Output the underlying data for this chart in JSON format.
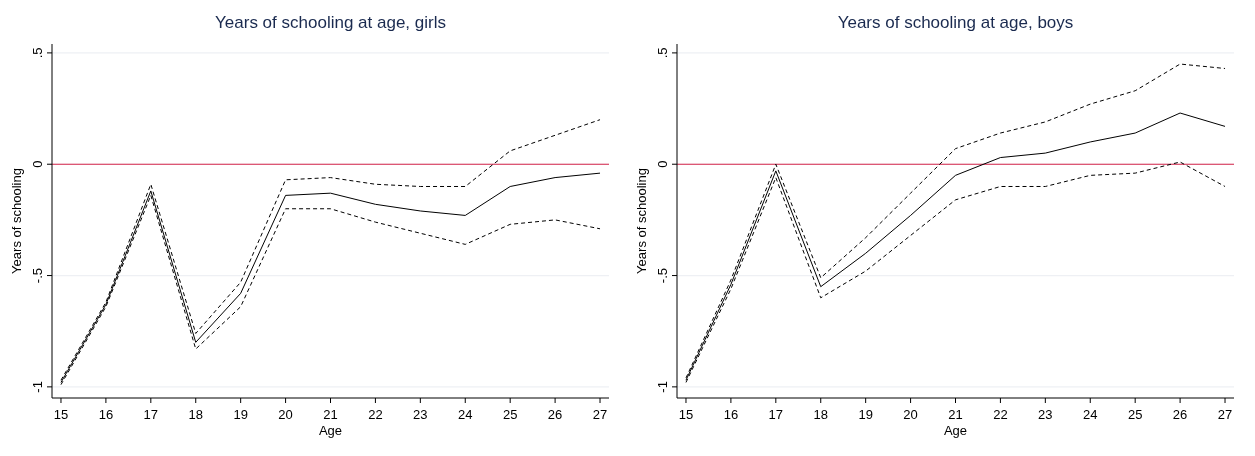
{
  "chart_data": [
    {
      "type": "line",
      "title": "Years of schooling at age, girls",
      "xlabel": "Age",
      "ylabel": "Years of schooling",
      "x": [
        15,
        16,
        17,
        18,
        19,
        20,
        21,
        22,
        23,
        24,
        25,
        26,
        27
      ],
      "xlim": [
        14.8,
        27.2
      ],
      "xticks": [
        15,
        16,
        17,
        18,
        19,
        20,
        21,
        22,
        23,
        24,
        25,
        26,
        27
      ],
      "ylim": [
        -1.05,
        0.54
      ],
      "yticks": [
        {
          "value": -1,
          "label": "-1"
        },
        {
          "value": -0.5,
          "label": "-.5"
        },
        {
          "value": 0,
          "label": "0"
        },
        {
          "value": 0.5,
          "label": ".5"
        }
      ],
      "grid": "y",
      "marker": "none",
      "ref_lines": [
        {
          "axis": "y",
          "value": 0,
          "color": "#d4244a"
        }
      ],
      "series": [
        {
          "color": "#000000",
          "line_style": "dashed",
          "values": [
            -0.97,
            -0.62,
            -0.09,
            -0.76,
            -0.53,
            -0.07,
            -0.06,
            -0.09,
            -0.1,
            -0.1,
            0.06,
            0.13,
            0.2
          ]
        },
        {
          "color": "#000000",
          "line_style": "solid",
          "values": [
            -0.98,
            -0.63,
            -0.12,
            -0.8,
            -0.58,
            -0.14,
            -0.13,
            -0.18,
            -0.21,
            -0.23,
            -0.1,
            -0.06,
            -0.04
          ]
        },
        {
          "color": "#000000",
          "line_style": "dashed",
          "values": [
            -0.99,
            -0.64,
            -0.14,
            -0.83,
            -0.64,
            -0.2,
            -0.2,
            -0.26,
            -0.31,
            -0.36,
            -0.27,
            -0.25,
            -0.29
          ]
        }
      ]
    },
    {
      "type": "line",
      "title": "Years of schooling at age, boys",
      "xlabel": "Age",
      "ylabel": "Years of schooling",
      "x": [
        15,
        16,
        17,
        18,
        19,
        20,
        21,
        22,
        23,
        24,
        25,
        26,
        27
      ],
      "xlim": [
        14.8,
        27.2
      ],
      "xticks": [
        15,
        16,
        17,
        18,
        19,
        20,
        21,
        22,
        23,
        24,
        25,
        26,
        27
      ],
      "ylim": [
        -1.05,
        0.54
      ],
      "yticks": [
        {
          "value": -1,
          "label": "-1"
        },
        {
          "value": -0.5,
          "label": "-.5"
        },
        {
          "value": 0,
          "label": "0"
        },
        {
          "value": 0.5,
          "label": ".5"
        }
      ],
      "grid": "y",
      "marker": "none",
      "ref_lines": [
        {
          "axis": "y",
          "value": 0,
          "color": "#d4244a"
        }
      ],
      "series": [
        {
          "color": "#000000",
          "line_style": "dashed",
          "values": [
            -0.96,
            -0.52,
            0.0,
            -0.51,
            -0.33,
            -0.13,
            0.07,
            0.14,
            0.19,
            0.27,
            0.33,
            0.45,
            0.43
          ]
        },
        {
          "color": "#000000",
          "line_style": "solid",
          "values": [
            -0.97,
            -0.54,
            -0.03,
            -0.55,
            -0.4,
            -0.23,
            -0.05,
            0.03,
            0.05,
            0.1,
            0.14,
            0.23,
            0.17
          ]
        },
        {
          "color": "#000000",
          "line_style": "dashed",
          "values": [
            -0.98,
            -0.56,
            -0.06,
            -0.6,
            -0.48,
            -0.32,
            -0.16,
            -0.1,
            -0.1,
            -0.05,
            -0.04,
            0.01,
            -0.1
          ]
        }
      ]
    }
  ]
}
